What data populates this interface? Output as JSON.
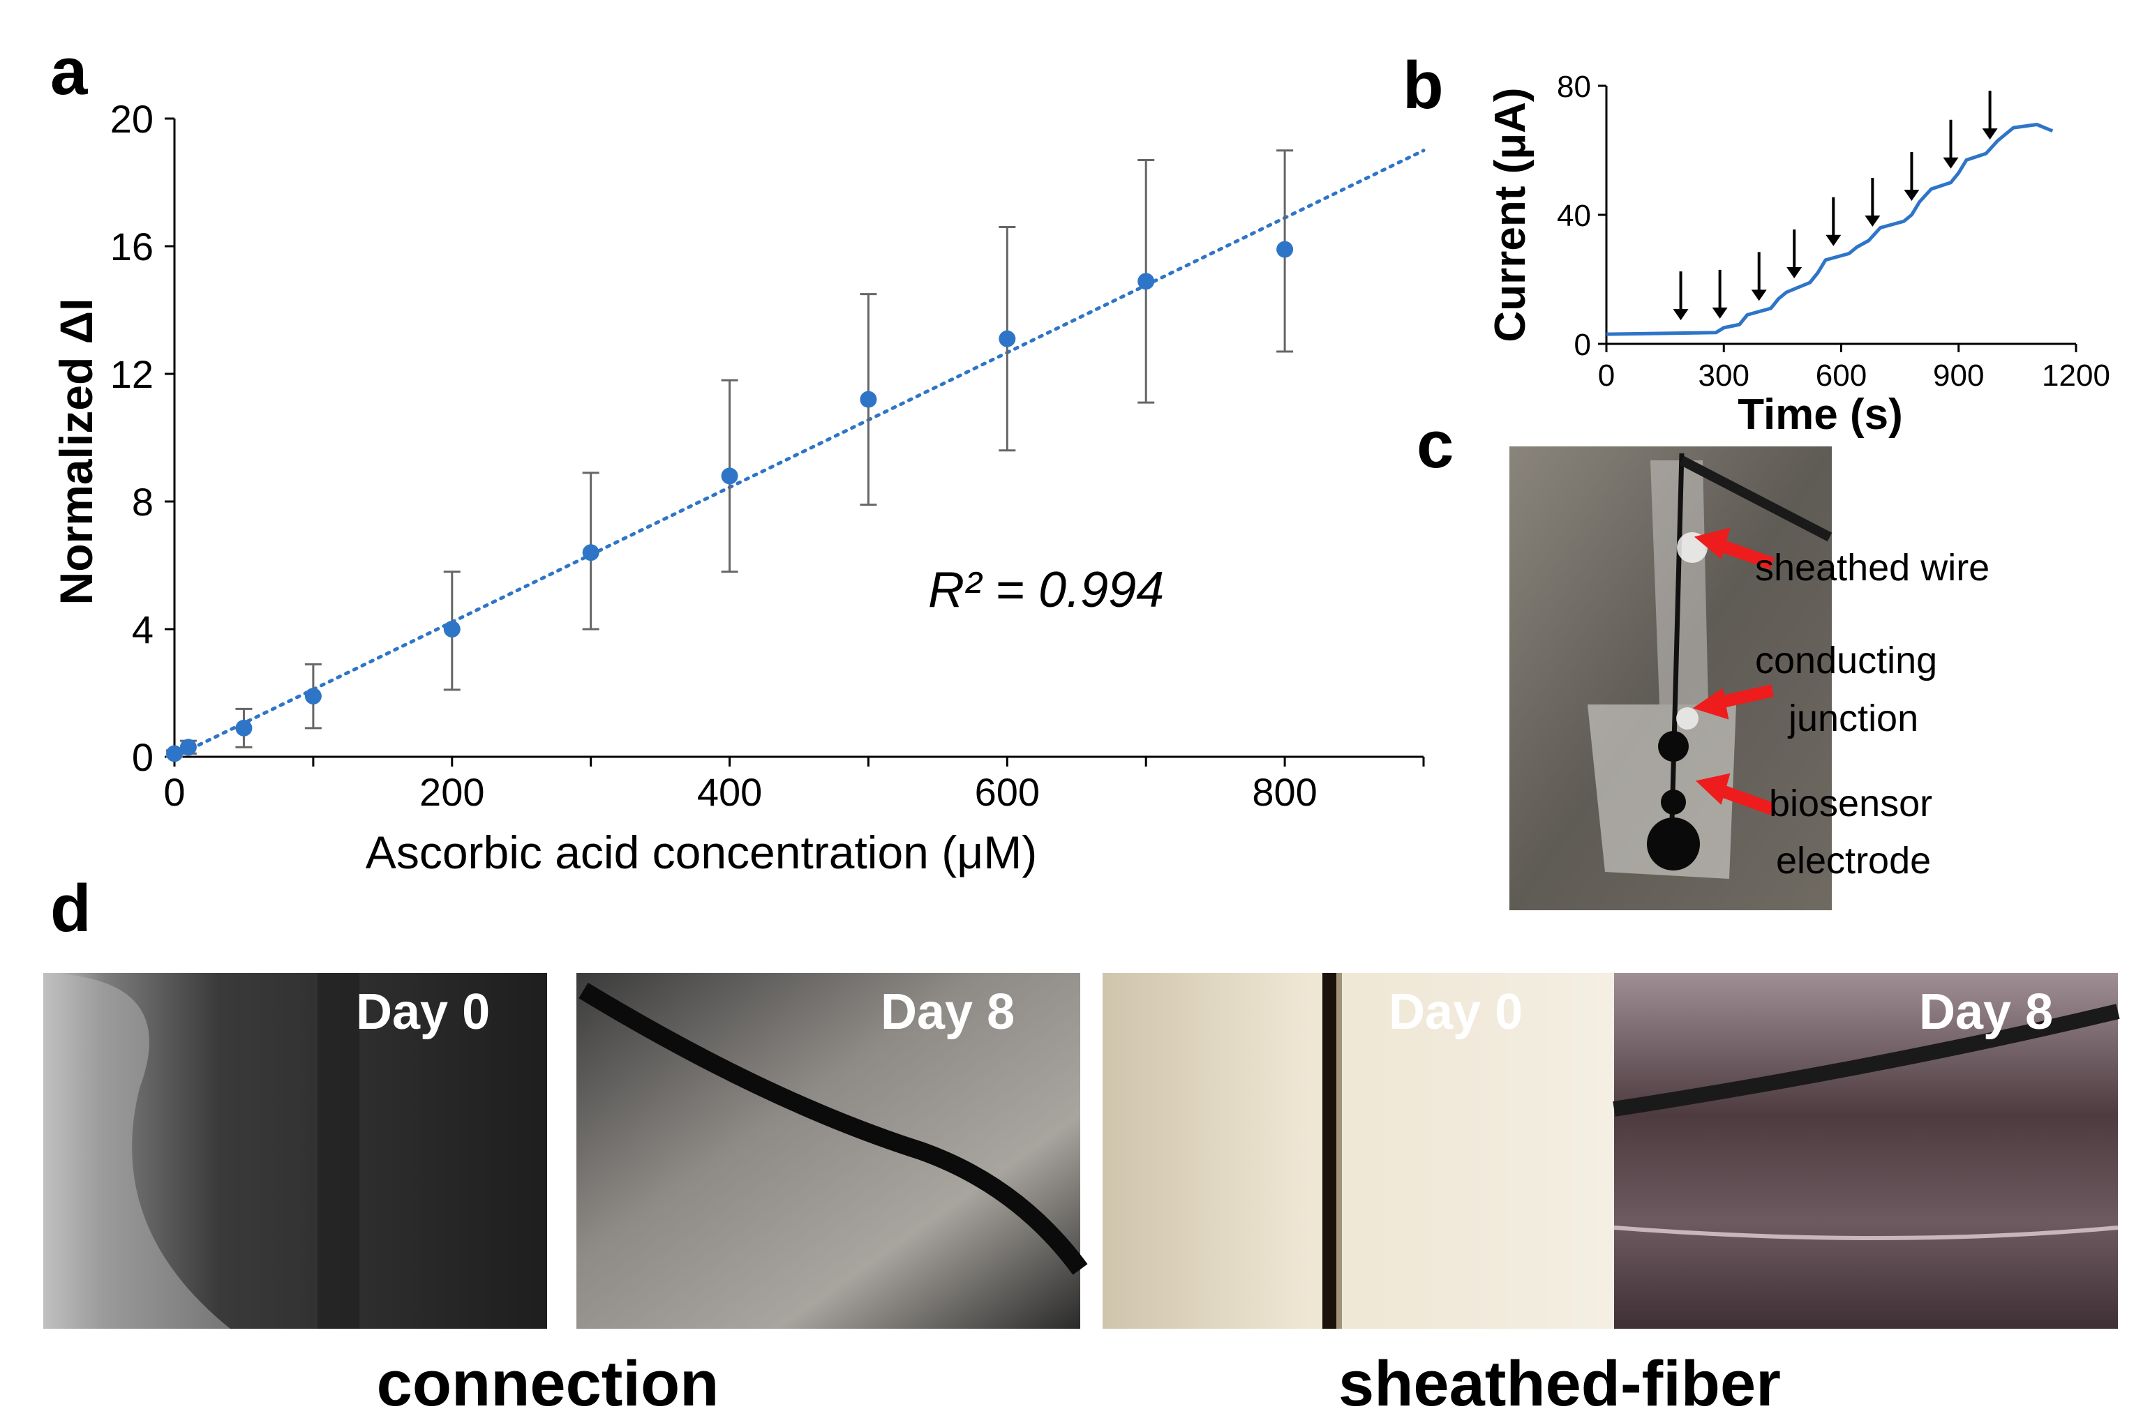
{
  "panel_labels": {
    "a": "a",
    "b": "b",
    "c": "c",
    "d": "d"
  },
  "chart_data": [
    {
      "panel": "a",
      "type": "scatter",
      "title": "",
      "xlabel": "Ascorbic acid concentration (μM)",
      "ylabel": "Normalized ΔI",
      "xlim": [
        0,
        900
      ],
      "ylim": [
        0,
        20
      ],
      "xticks": [
        0,
        200,
        400,
        600,
        800
      ],
      "yticks": [
        0,
        4,
        8,
        12,
        16,
        20
      ],
      "grid": false,
      "legend": "none",
      "annotation": "R² = 0.994",
      "color": "#2e75c8",
      "x": [
        0,
        10,
        50,
        100,
        200,
        300,
        400,
        500,
        600,
        700,
        800
      ],
      "y": [
        0.1,
        0.3,
        0.9,
        1.9,
        4.0,
        6.4,
        8.8,
        11.2,
        13.1,
        14.9,
        15.9
      ],
      "error_low": [
        0.1,
        0.2,
        0.6,
        1.0,
        1.9,
        2.4,
        3.0,
        3.3,
        3.5,
        3.8,
        3.2
      ],
      "error_high": [
        0.1,
        0.2,
        0.6,
        1.0,
        1.8,
        2.5,
        3.0,
        3.3,
        3.5,
        3.8,
        3.1
      ],
      "trendline": {
        "x": [
          0,
          900
        ],
        "y": [
          0,
          19.0
        ],
        "style": "dotted"
      }
    },
    {
      "panel": "b",
      "type": "line",
      "title": "",
      "xlabel": "Time (s)",
      "ylabel": "Current (μA)",
      "xlim": [
        0,
        1200
      ],
      "ylim": [
        0,
        80
      ],
      "xticks": [
        0,
        300,
        600,
        900,
        1200
      ],
      "yticks": [
        0,
        40,
        80
      ],
      "grid": false,
      "legend": "none",
      "color": "#2e75c8",
      "x": [
        0,
        280,
        300,
        340,
        360,
        420,
        440,
        460,
        520,
        540,
        560,
        620,
        640,
        670,
        700,
        760,
        780,
        800,
        830,
        880,
        900,
        920,
        970,
        1000,
        1040,
        1100,
        1140
      ],
      "y": [
        3,
        3.5,
        5,
        6,
        9,
        11,
        14,
        16,
        19,
        22,
        26,
        28,
        30,
        32,
        36,
        38,
        40,
        44,
        48,
        50,
        53,
        57,
        59,
        63,
        67,
        68,
        66
      ],
      "arrow_times": [
        190,
        290,
        390,
        480,
        580,
        680,
        780,
        880,
        980
      ]
    }
  ],
  "photo_c": {
    "labels": [
      "sheathed wire",
      "conducting",
      "junction",
      "biosensor",
      "electrode"
    ],
    "arrow_color": "#ee1c1c"
  },
  "panel_d": {
    "images": [
      {
        "label": "Day 0"
      },
      {
        "label": "Day 8"
      },
      {
        "label": "Day 0"
      },
      {
        "label": "Day 8"
      }
    ],
    "captions": [
      "connection",
      "sheathed-fiber"
    ]
  }
}
